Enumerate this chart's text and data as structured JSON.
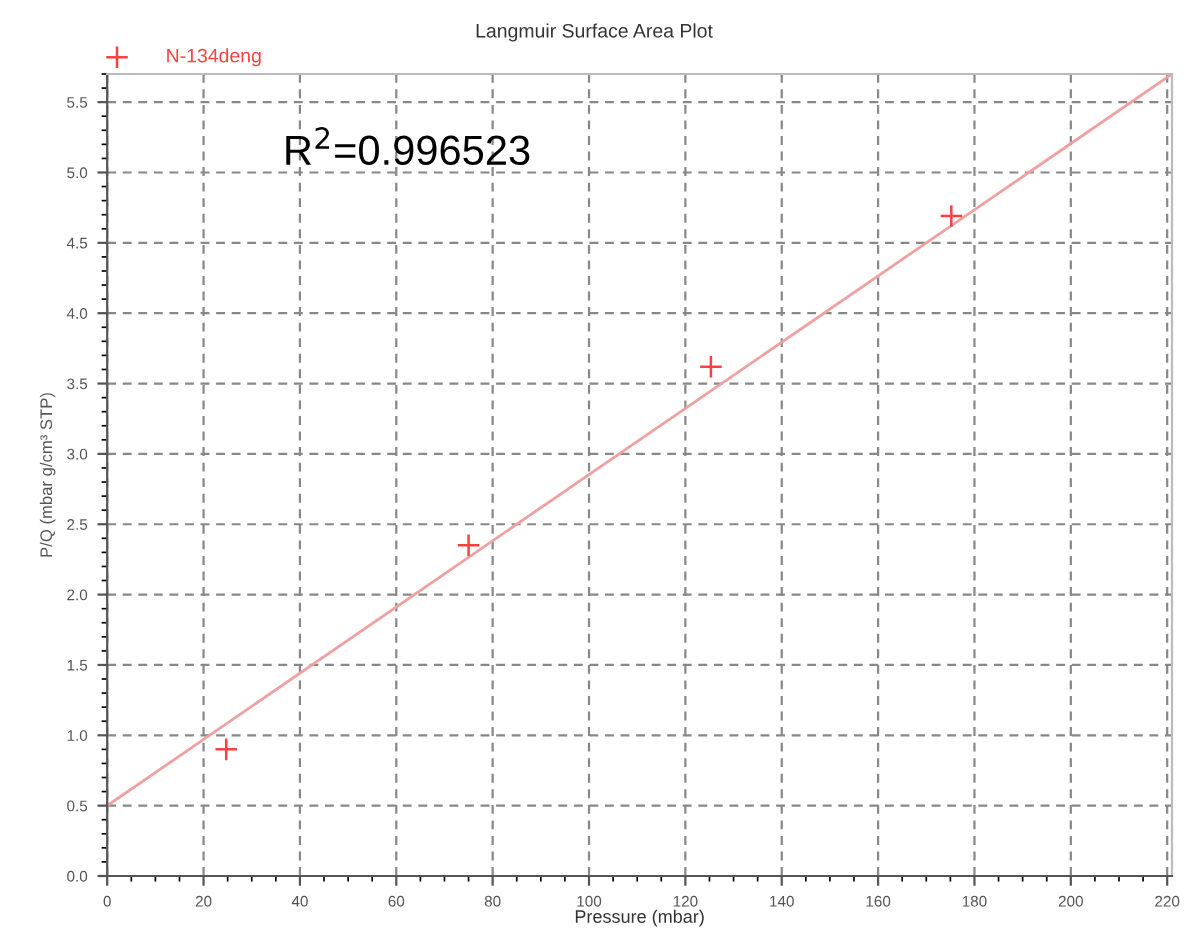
{
  "chart_data": {
    "type": "scatter",
    "title": "Langmuir Surface Area Plot",
    "xlabel": "Pressure (mbar)",
    "ylabel": "P/Q (mbar g/cm³ STP)",
    "series": [
      {
        "name": "N-134deng",
        "marker": "cross",
        "color": "#ff4040",
        "x": [
          24.7,
          75,
          125.3,
          175.2
        ],
        "values": [
          0.9,
          2.35,
          3.62,
          4.69
        ]
      },
      {
        "type": "line",
        "color": "#f0a0a0",
        "x": [
          0,
          221
        ],
        "values": [
          0.5,
          5.7
        ]
      }
    ],
    "annotations": [
      {
        "text": "R$^{2}$=0.996523"
      }
    ],
    "xlim": [
      0,
      221
    ],
    "ylim": [
      0,
      5.7
    ],
    "xticks": [
      0,
      20,
      40,
      60,
      80,
      100,
      120,
      140,
      160,
      180,
      200,
      220
    ],
    "yticks": [
      {
        "value": 0,
        "label": "0.0"
      },
      0.5,
      {
        "value": 1,
        "label": "1.0"
      },
      1.5,
      {
        "value": 2,
        "label": "2.0"
      },
      2.5,
      {
        "value": 3,
        "label": "3.0"
      },
      3.5,
      {
        "value": 4,
        "label": "4.0"
      },
      4.5,
      {
        "value": 5,
        "label": "5.0"
      },
      5.5
    ],
    "grid": true,
    "legend": "top left"
  }
}
